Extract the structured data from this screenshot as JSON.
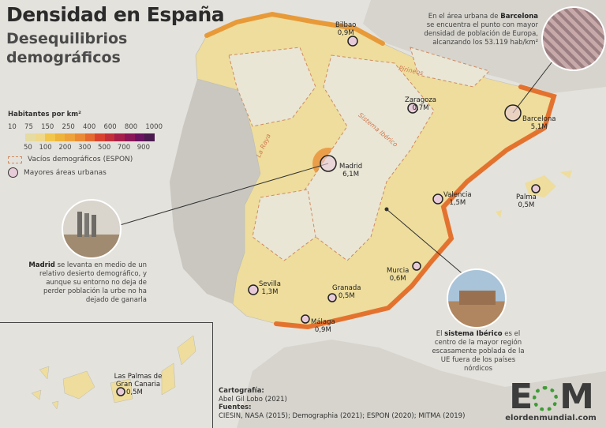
{
  "title": "Densidad en España",
  "subtitle": "Desequilibrios demográficos",
  "legend": {
    "title": "Habitantes por km²",
    "top_ticks": [
      "10",
      "75",
      "150",
      "250",
      "400",
      "600",
      "800",
      "1000"
    ],
    "bottom_ticks": [
      "50",
      "100",
      "200",
      "300",
      "500",
      "700",
      "900"
    ],
    "colors": [
      "#e6dba0",
      "#efd88a",
      "#f2c64a",
      "#eeb33a",
      "#eea23a",
      "#ea8a35",
      "#e46a30",
      "#d9432e",
      "#c22f3a",
      "#a61f4a",
      "#8a1658",
      "#6a1260",
      "#4a1a4e"
    ],
    "vacios": "Vacíos demográficos (ESPON)",
    "urbanas": "Mayores áreas urbanas"
  },
  "cities": [
    {
      "name": "Bilbao",
      "pop": "0,9M"
    },
    {
      "name": "Zaragoza",
      "pop": "0,7M"
    },
    {
      "name": "Barcelona",
      "pop": "5,1M"
    },
    {
      "name": "Madrid",
      "pop": "6,1M"
    },
    {
      "name": "Valencia",
      "pop": "1,5M"
    },
    {
      "name": "Palma",
      "pop": "0,5M"
    },
    {
      "name": "Murcia",
      "pop": "0,6M"
    },
    {
      "name": "Sevilla",
      "pop": "1,3M"
    },
    {
      "name": "Granada",
      "pop": "0,5M"
    },
    {
      "name": "Málaga",
      "pop": "0,9M"
    },
    {
      "name": "Las Palmas de Gran Canaria",
      "pop": "0,5M"
    }
  ],
  "region_labels": {
    "pirineos": "Pirineos",
    "iberico": "Sistema Ibérico",
    "raya": "La Raya"
  },
  "notes": {
    "barcelona": {
      "pre": "En el área urbana de ",
      "bold": "Barcelona",
      "post": " se encuentra el punto con mayor densidad de población de Europa, alcanzando los 53.119 hab/km²"
    },
    "madrid": {
      "bold": "Madrid",
      "post": " se levanta en medio de un relativo desierto demográfico, y aunque su entorno no deja de perder población la urbe no ha dejado de ganarla"
    },
    "iberico": {
      "pre": "El ",
      "bold": "sistema Ibérico",
      "post": " es el centro de la mayor región escasamente poblada de la UE fuera de los países nórdicos"
    }
  },
  "credits": {
    "carto_label": "Cartografía:",
    "carto": "Abel Gil Lobo (2021)",
    "sources_label": "Fuentes:",
    "sources": "CIESIN, NASA (2015); Demographia (2021); ESPON (2020); MITMA (2019)"
  },
  "logo": {
    "url_a": "elorden",
    "url_b": "mundial.com"
  }
}
